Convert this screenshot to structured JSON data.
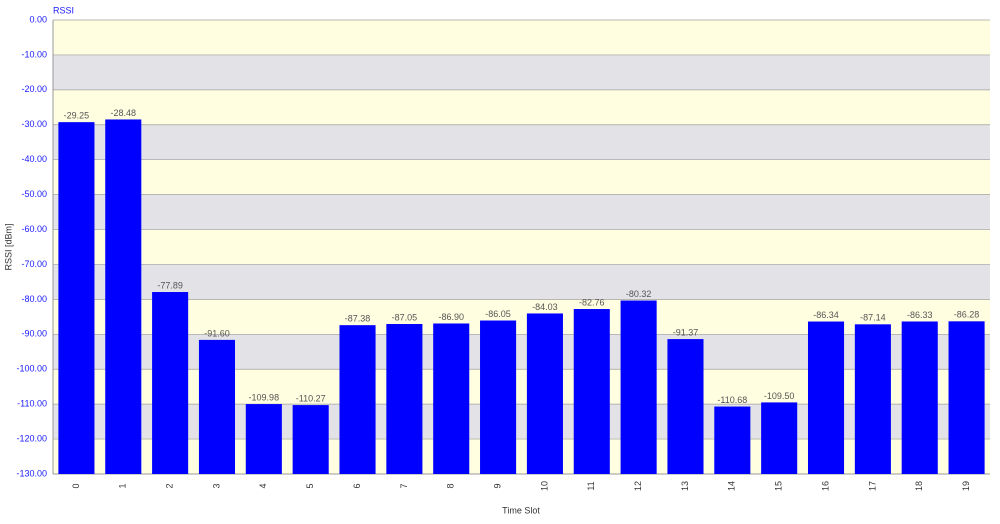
{
  "chart_data": {
    "type": "bar",
    "title": "RSSI",
    "x_label": "Time Slot",
    "y_label": "RSSI [dBm]",
    "categories": [
      "0",
      "1",
      "2",
      "3",
      "4",
      "5",
      "6",
      "7",
      "8",
      "9",
      "10",
      "11",
      "12",
      "13",
      "14",
      "15",
      "16",
      "17",
      "18",
      "19"
    ],
    "values": [
      -29.25,
      -28.48,
      -77.89,
      -91.6,
      -109.98,
      -110.27,
      -87.38,
      -87.05,
      -86.9,
      -86.05,
      -84.03,
      -82.76,
      -80.32,
      -91.37,
      -110.68,
      -109.5,
      -86.34,
      -87.14,
      -86.33,
      -86.28
    ],
    "value_labels": [
      "-29.25",
      "-28.48",
      "-77.89",
      "-91.60",
      "-109.98",
      "-110.27",
      "-87.38",
      "-87.05",
      "-86.90",
      "-86.05",
      "-84.03",
      "-82.76",
      "-80.32",
      "-91.37",
      "-110.68",
      "-109.50",
      "-86.34",
      "-87.14",
      "-86.33",
      "-86.28"
    ],
    "color": "#0000ff",
    "ylim": [
      -130,
      0
    ],
    "yticks": [
      {
        "value": 0,
        "label": "0.00"
      },
      {
        "value": -10,
        "label": "-10.00"
      },
      {
        "value": -20,
        "label": "-20.00"
      },
      {
        "value": -30,
        "label": "-30.00"
      },
      {
        "value": -40,
        "label": "-40.00"
      },
      {
        "value": -50,
        "label": "-50.00"
      },
      {
        "value": -60,
        "label": "-60.00"
      },
      {
        "value": -70,
        "label": "-70.00"
      },
      {
        "value": -80,
        "label": "-80.00"
      },
      {
        "value": -90,
        "label": "-90.00"
      },
      {
        "value": -100,
        "label": "-100.00"
      },
      {
        "value": -110,
        "label": "-110.00"
      },
      {
        "value": -120,
        "label": "-120.00"
      },
      {
        "value": -130,
        "label": "-130.00"
      }
    ],
    "band_colors": [
      "#fffee0",
      "#e3e2e6"
    ],
    "grid": true
  }
}
